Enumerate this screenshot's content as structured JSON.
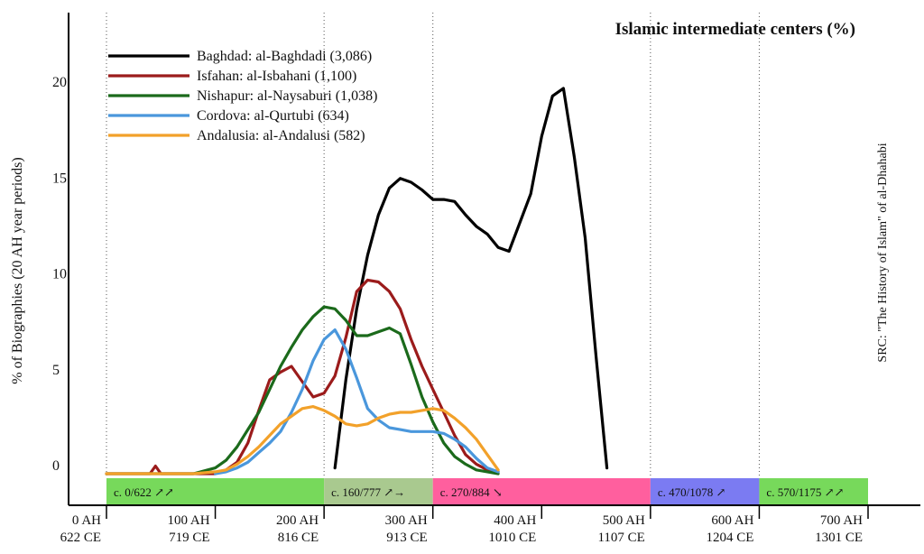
{
  "chart_data": {
    "type": "line",
    "title": "Islamic intermediate centers (%)",
    "ylabel": "% of Biographies (20 AH year periods)",
    "source_note": "SRC: \"The History of Islam\" of al-Dhahabi",
    "xlim": [
      0,
      700
    ],
    "ylim": [
      0,
      23
    ],
    "y_ticks": [
      0,
      5,
      10,
      15,
      20
    ],
    "x_ticks": [
      {
        "value": 0,
        "ah": "0 AH",
        "ce": "622 CE"
      },
      {
        "value": 100,
        "ah": "100 AH",
        "ce": "719 CE"
      },
      {
        "value": 200,
        "ah": "200 AH",
        "ce": "816 CE"
      },
      {
        "value": 300,
        "ah": "300 AH",
        "ce": "913 CE"
      },
      {
        "value": 400,
        "ah": "400 AH",
        "ce": "1010 CE"
      },
      {
        "value": 500,
        "ah": "500 AH",
        "ce": "1107 CE"
      },
      {
        "value": 600,
        "ah": "600 AH",
        "ce": "1204 CE"
      },
      {
        "value": 700,
        "ah": "700 AH",
        "ce": "1301 CE"
      }
    ],
    "gridlines_x": [
      0,
      200,
      300,
      500,
      600
    ],
    "legend_position": "top-left",
    "series": [
      {
        "name": "Baghdad: al-Baghdadi (3,086)",
        "color": "#000000",
        "points": [
          [
            210,
            0.3
          ],
          [
            220,
            4.9
          ],
          [
            230,
            8.6
          ],
          [
            240,
            11.4
          ],
          [
            250,
            13.5
          ],
          [
            260,
            14.9
          ],
          [
            270,
            15.4
          ],
          [
            280,
            15.2
          ],
          [
            290,
            14.8
          ],
          [
            300,
            14.3
          ],
          [
            310,
            14.3
          ],
          [
            320,
            14.2
          ],
          [
            330,
            13.5
          ],
          [
            340,
            12.9
          ],
          [
            350,
            12.5
          ],
          [
            360,
            11.8
          ],
          [
            370,
            11.6
          ],
          [
            380,
            13.1
          ],
          [
            390,
            14.6
          ],
          [
            400,
            17.6
          ],
          [
            410,
            19.7
          ],
          [
            420,
            20.1
          ],
          [
            430,
            16.5
          ],
          [
            440,
            12.3
          ],
          [
            450,
            6.1
          ],
          [
            460,
            0.3
          ]
        ]
      },
      {
        "name": "Isfahan: al-Isbahani (1,100)",
        "color": "#9b1b1b",
        "points": [
          [
            0,
            0
          ],
          [
            20,
            0
          ],
          [
            30,
            0
          ],
          [
            40,
            0
          ],
          [
            45,
            0.4
          ],
          [
            50,
            0
          ],
          [
            60,
            0
          ],
          [
            70,
            0
          ],
          [
            80,
            0
          ],
          [
            90,
            0
          ],
          [
            100,
            0
          ],
          [
            110,
            0.2
          ],
          [
            120,
            0.6
          ],
          [
            130,
            1.6
          ],
          [
            140,
            3.3
          ],
          [
            150,
            4.9
          ],
          [
            160,
            5.3
          ],
          [
            170,
            5.6
          ],
          [
            180,
            4.8
          ],
          [
            190,
            4.0
          ],
          [
            200,
            4.2
          ],
          [
            210,
            5.1
          ],
          [
            220,
            7.1
          ],
          [
            230,
            9.5
          ],
          [
            240,
            10.1
          ],
          [
            250,
            10.0
          ],
          [
            260,
            9.5
          ],
          [
            270,
            8.6
          ],
          [
            280,
            7.0
          ],
          [
            290,
            5.6
          ],
          [
            300,
            4.4
          ],
          [
            310,
            3.2
          ],
          [
            320,
            2.0
          ],
          [
            330,
            1.0
          ],
          [
            340,
            0.5
          ],
          [
            350,
            0.2
          ],
          [
            360,
            0.1
          ]
        ]
      },
      {
        "name": "Nishapur: al-Naysaburi (1,038)",
        "color": "#1b6a1b",
        "points": [
          [
            0,
            0
          ],
          [
            20,
            0
          ],
          [
            40,
            0
          ],
          [
            60,
            0
          ],
          [
            80,
            0
          ],
          [
            100,
            0.3
          ],
          [
            110,
            0.7
          ],
          [
            120,
            1.4
          ],
          [
            130,
            2.3
          ],
          [
            140,
            3.2
          ],
          [
            150,
            4.4
          ],
          [
            160,
            5.6
          ],
          [
            170,
            6.6
          ],
          [
            180,
            7.5
          ],
          [
            190,
            8.2
          ],
          [
            200,
            8.7
          ],
          [
            210,
            8.6
          ],
          [
            220,
            8.0
          ],
          [
            230,
            7.2
          ],
          [
            240,
            7.2
          ],
          [
            250,
            7.4
          ],
          [
            260,
            7.6
          ],
          [
            270,
            7.3
          ],
          [
            280,
            5.7
          ],
          [
            290,
            4.0
          ],
          [
            300,
            2.7
          ],
          [
            310,
            1.6
          ],
          [
            320,
            0.9
          ],
          [
            330,
            0.5
          ],
          [
            340,
            0.2
          ],
          [
            350,
            0.1
          ],
          [
            360,
            0
          ]
        ]
      },
      {
        "name": "Cordova: al-Qurtubi (634)",
        "color": "#4a97dc",
        "points": [
          [
            100,
            0
          ],
          [
            110,
            0.1
          ],
          [
            120,
            0.3
          ],
          [
            130,
            0.6
          ],
          [
            140,
            1.1
          ],
          [
            150,
            1.6
          ],
          [
            160,
            2.2
          ],
          [
            170,
            3.2
          ],
          [
            180,
            4.4
          ],
          [
            190,
            5.9
          ],
          [
            200,
            7.0
          ],
          [
            210,
            7.5
          ],
          [
            220,
            6.5
          ],
          [
            230,
            5.0
          ],
          [
            240,
            3.4
          ],
          [
            250,
            2.8
          ],
          [
            260,
            2.4
          ],
          [
            270,
            2.3
          ],
          [
            280,
            2.2
          ],
          [
            290,
            2.2
          ],
          [
            300,
            2.2
          ],
          [
            310,
            2.1
          ],
          [
            320,
            1.8
          ],
          [
            330,
            1.4
          ],
          [
            340,
            0.8
          ],
          [
            350,
            0.3
          ],
          [
            360,
            0.1
          ]
        ]
      },
      {
        "name": "Andalusia: al-Andalusi (582)",
        "color": "#f2a12a",
        "points": [
          [
            0,
            0
          ],
          [
            20,
            0
          ],
          [
            40,
            0
          ],
          [
            60,
            0
          ],
          [
            80,
            0
          ],
          [
            100,
            0.1
          ],
          [
            110,
            0.2
          ],
          [
            120,
            0.5
          ],
          [
            130,
            0.9
          ],
          [
            140,
            1.4
          ],
          [
            150,
            2.0
          ],
          [
            160,
            2.6
          ],
          [
            170,
            3.0
          ],
          [
            180,
            3.4
          ],
          [
            190,
            3.5
          ],
          [
            200,
            3.3
          ],
          [
            210,
            3.0
          ],
          [
            220,
            2.6
          ],
          [
            230,
            2.5
          ],
          [
            240,
            2.6
          ],
          [
            250,
            2.9
          ],
          [
            260,
            3.1
          ],
          [
            270,
            3.2
          ],
          [
            280,
            3.2
          ],
          [
            290,
            3.3
          ],
          [
            300,
            3.4
          ],
          [
            310,
            3.3
          ],
          [
            320,
            2.9
          ],
          [
            330,
            2.4
          ],
          [
            340,
            1.8
          ],
          [
            350,
            1.0
          ],
          [
            360,
            0.2
          ]
        ]
      }
    ],
    "periods": [
      {
        "label": "c. 0/622 ↗↗",
        "start": 0,
        "end": 200,
        "color": "#77d95b"
      },
      {
        "label": "c. 160/777 ↗→",
        "start": 200,
        "end": 300,
        "color": "#a9c98f"
      },
      {
        "label": "c. 270/884 ↘",
        "start": 300,
        "end": 500,
        "color": "#ff5f9e"
      },
      {
        "label": "c. 470/1078 ↗",
        "start": 500,
        "end": 600,
        "color": "#7b7bf2"
      },
      {
        "label": "c. 570/1175 ↗↗",
        "start": 600,
        "end": 700,
        "color": "#77d95b"
      }
    ]
  }
}
